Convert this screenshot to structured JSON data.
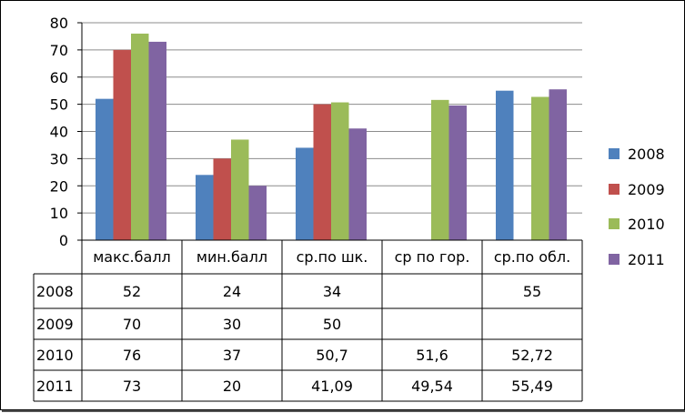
{
  "chart_data": {
    "type": "bar",
    "title": "",
    "xlabel": "",
    "ylabel": "",
    "ylim": [
      0,
      80
    ],
    "yticks": [
      0,
      10,
      20,
      30,
      40,
      50,
      60,
      70,
      80
    ],
    "grid": true,
    "legend_position": "right",
    "categories": [
      "макс.балл",
      "мин.балл",
      "ср.по шк.",
      "ср по гор.",
      "ср.по обл."
    ],
    "series": [
      {
        "name": "2008",
        "color": "#4F81BD",
        "values": [
          52,
          24,
          34,
          null,
          55
        ]
      },
      {
        "name": "2009",
        "color": "#C0504D",
        "values": [
          70,
          30,
          50,
          null,
          null
        ]
      },
      {
        "name": "2010",
        "color": "#9BBB59",
        "values": [
          76,
          37,
          50.7,
          51.6,
          52.72
        ]
      },
      {
        "name": "2011",
        "color": "#8064A2",
        "values": [
          73,
          20,
          41.09,
          49.54,
          55.49
        ]
      }
    ],
    "table": {
      "row_labels": [
        "2008",
        "2009",
        "2010",
        "2011"
      ],
      "rows": [
        [
          "52",
          "24",
          "34",
          "",
          "55"
        ],
        [
          "70",
          "30",
          "50",
          "",
          ""
        ],
        [
          "76",
          "37",
          "50,7",
          "51,6",
          "52,72"
        ],
        [
          "73",
          "20",
          "41,09",
          "49,54",
          "55,49"
        ]
      ]
    }
  }
}
